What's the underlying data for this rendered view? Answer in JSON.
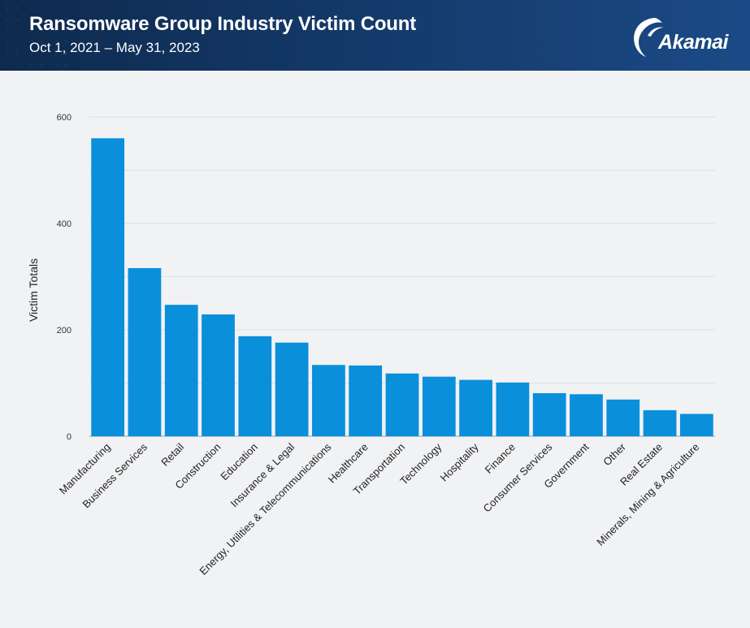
{
  "header": {
    "title": "Ransomware Group Industry Victim Count",
    "subtitle": "Oct 1, 2021 – May 31, 2023",
    "logo_text": "Akamai"
  },
  "colors": {
    "bar": "#0a8fdb",
    "header_bg": "#143a6b",
    "gridline": "#dcdfe3",
    "page_bg": "#f1f2f4"
  },
  "chart_data": {
    "type": "bar",
    "title": "Ransomware Group Industry Victim Count",
    "subtitle": "Oct 1, 2021 – May 31, 2023",
    "ylabel": "Victim Totals",
    "xlabel": "",
    "ylim": [
      0,
      600
    ],
    "yticks": [
      0,
      200,
      400,
      600
    ],
    "ytick_labels": [
      "0",
      "200",
      "400",
      "600"
    ],
    "grid": true,
    "categories": [
      "Manufacturing",
      "Business Services",
      "Retail",
      "Construction",
      "Education",
      "Insurance & Legal",
      "Energy, Utilities & Telecommunications",
      "Healthcare",
      "Transportation",
      "Technology",
      "Hospitality",
      "Finance",
      "Consumer Services",
      "Government",
      "Other",
      "Real Estate",
      "Minerals, Mining & Agriculture"
    ],
    "values": [
      560,
      316,
      247,
      229,
      188,
      176,
      134,
      133,
      118,
      112,
      106,
      101,
      81,
      79,
      69,
      49,
      42
    ]
  }
}
